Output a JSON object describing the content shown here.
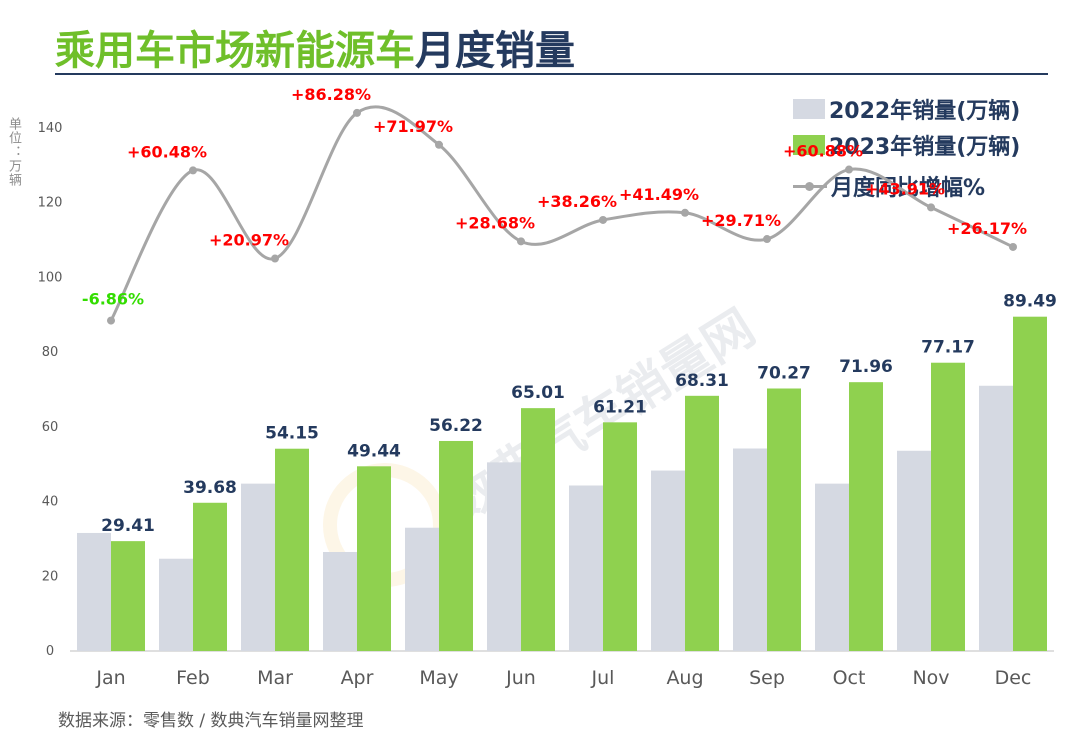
{
  "title": {
    "part1": "乘用车市场新能源车",
    "part2": "月度销量"
  },
  "unit_label": "单位：万辆",
  "legend": {
    "s2022": "2022年销量(万辆)",
    "s2023": "2023年销量(万辆)",
    "growth": "月度同比增幅%"
  },
  "source": "数据来源：零售数 / 数典汽车销量网整理",
  "watermark": "数典汽车销量网",
  "colors": {
    "bar_2022": "#d5d9e2",
    "bar_2023": "#8fd14f",
    "line": "#a6a6a6",
    "label_2023": "#243a5e",
    "growth_positive": "#ff0000",
    "growth_negative": "#33dd00",
    "title_green": "#6fbf2a",
    "title_navy": "#243a5e"
  },
  "chart_data": {
    "type": "bar",
    "categories": [
      "Jan",
      "Feb",
      "Mar",
      "Apr",
      "May",
      "Jun",
      "Jul",
      "Aug",
      "Sep",
      "Oct",
      "Nov",
      "Dec"
    ],
    "series": [
      {
        "name": "2022年销量(万辆)",
        "type": "bar",
        "values": [
          31.6,
          24.7,
          44.8,
          26.5,
          33.0,
          50.5,
          44.3,
          48.3,
          54.2,
          44.8,
          53.6,
          71.0
        ]
      },
      {
        "name": "2023年销量(万辆)",
        "type": "bar",
        "values": [
          29.41,
          39.68,
          54.15,
          49.44,
          56.22,
          65.01,
          61.21,
          68.31,
          70.27,
          71.96,
          77.17,
          89.49
        ],
        "labels": [
          "29.41",
          "39.68",
          "54.15",
          "49.44",
          "56.22",
          "65.01",
          "61.21",
          "68.31",
          "70.27",
          "71.96",
          "77.17",
          "89.49"
        ]
      },
      {
        "name": "月度同比增幅%",
        "type": "line",
        "values": [
          -6.86,
          60.48,
          20.97,
          86.28,
          71.97,
          28.68,
          38.26,
          41.49,
          29.71,
          60.88,
          43.91,
          26.17
        ],
        "labels": [
          "-6.86%",
          "+60.48%",
          "+20.97%",
          "+86.28%",
          "+71.97%",
          "+28.68%",
          "+38.26%",
          "+41.49%",
          "+29.71%",
          "+60.88%",
          "+43.91%",
          "+26.17%"
        ]
      }
    ],
    "y_axis": {
      "min": 0,
      "max": 140,
      "ticks": [
        0,
        20,
        40,
        60,
        80,
        100,
        120,
        140
      ]
    },
    "grid": false,
    "legend_position": "top-right"
  }
}
